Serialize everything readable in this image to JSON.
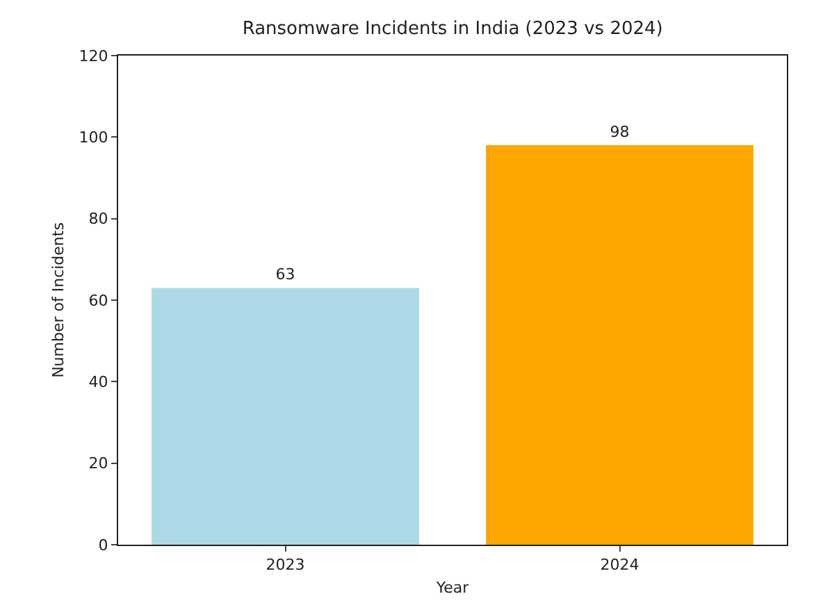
{
  "chart_data": {
    "type": "bar",
    "title": "Ransomware Incidents in India (2023 vs 2024)",
    "xlabel": "Year",
    "ylabel": "Number of Incidents",
    "categories": [
      "2023",
      "2024"
    ],
    "values": [
      63,
      98
    ],
    "colors": [
      "#add8e6",
      "#ffa500"
    ],
    "ylim": [
      0,
      120
    ],
    "yticks": [
      0,
      20,
      40,
      60,
      80,
      100,
      120
    ],
    "data_labels": true
  }
}
